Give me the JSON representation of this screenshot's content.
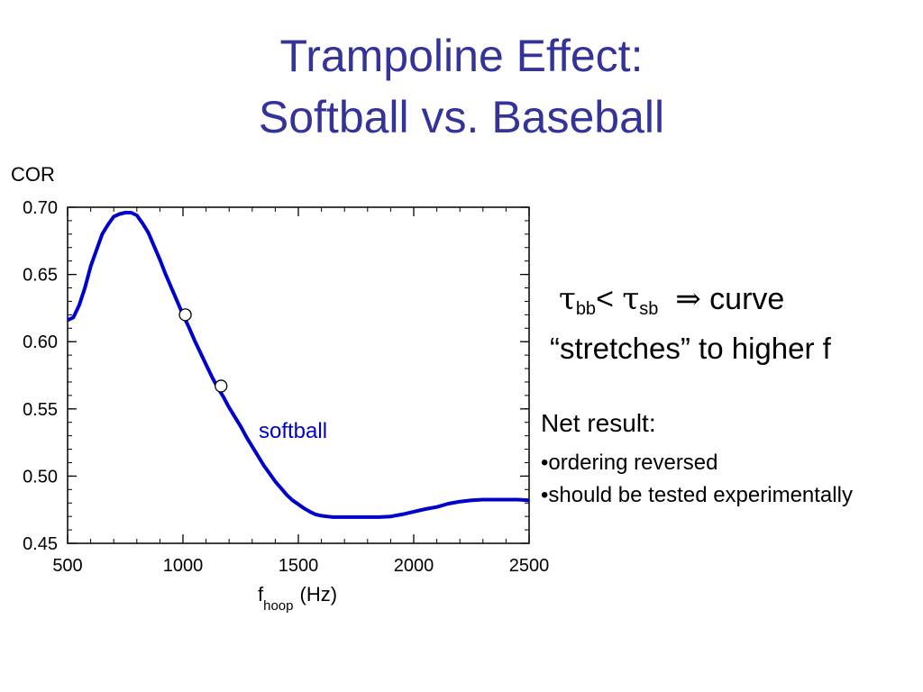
{
  "slide": {
    "title_line1": "Trampoline Effect:",
    "title_line2": "Softball vs. Baseball"
  },
  "right_text": {
    "tau": "τ",
    "sub_bb": "bb",
    "less_than": "<",
    "sub_sb": "sb",
    "implies": "⇒",
    "curve_word": "curve",
    "stretches_line": "“stretches” to higher f",
    "net_result": "Net result:",
    "bullet1": "•ordering reversed",
    "bullet2": "•should be tested experimentally"
  },
  "colors": {
    "title": "#333399",
    "curve": "#0000cc",
    "series_label": "#0000cc"
  },
  "chart_data": {
    "type": "line",
    "title": "",
    "ylabel": "COR",
    "xlabel_main": "f",
    "xlabel_sub": "hoop",
    "xlabel_unit": "(Hz)",
    "xlim": [
      500,
      2500
    ],
    "ylim": [
      0.45,
      0.7
    ],
    "xticks": [
      500,
      1000,
      1500,
      2000,
      2500
    ],
    "xtick_labels": [
      "500",
      "1000",
      "1500",
      "2000",
      "2500"
    ],
    "yticks": [
      0.45,
      0.5,
      0.55,
      0.6,
      0.65,
      0.7
    ],
    "ytick_labels": [
      "0.45",
      "0.50",
      "0.55",
      "0.60",
      "0.65",
      "0.70"
    ],
    "grid": false,
    "series": [
      {
        "name": "softball",
        "x": [
          500,
          525,
          550,
          575,
          600,
          625,
          650,
          675,
          700,
          725,
          750,
          775,
          800,
          825,
          850,
          875,
          900,
          925,
          950,
          975,
          1000,
          1025,
          1050,
          1075,
          1100,
          1125,
          1150,
          1175,
          1200,
          1225,
          1250,
          1275,
          1300,
          1325,
          1350,
          1375,
          1400,
          1425,
          1450,
          1475,
          1500,
          1525,
          1550,
          1575,
          1600,
          1625,
          1650,
          1675,
          1700,
          1725,
          1750,
          1800,
          1850,
          1900,
          1950,
          2000,
          2050,
          2100,
          2150,
          2200,
          2250,
          2300,
          2350,
          2400,
          2450,
          2500
        ],
        "y": [
          0.616,
          0.618,
          0.627,
          0.64,
          0.656,
          0.668,
          0.68,
          0.687,
          0.693,
          0.695,
          0.696,
          0.696,
          0.694,
          0.688,
          0.681,
          0.671,
          0.661,
          0.65,
          0.64,
          0.63,
          0.62,
          0.611,
          0.601,
          0.592,
          0.583,
          0.574,
          0.566,
          0.559,
          0.551,
          0.544,
          0.537,
          0.529,
          0.522,
          0.515,
          0.508,
          0.502,
          0.496,
          0.491,
          0.486,
          0.482,
          0.479,
          0.476,
          0.4735,
          0.4715,
          0.4705,
          0.47,
          0.4695,
          0.4695,
          0.4695,
          0.4695,
          0.4695,
          0.4695,
          0.4695,
          0.47,
          0.4715,
          0.4735,
          0.4755,
          0.477,
          0.4795,
          0.481,
          0.482,
          0.4825,
          0.4825,
          0.4825,
          0.4825,
          0.482
        ]
      }
    ],
    "markers": [
      {
        "x": 1010,
        "y": 0.62
      },
      {
        "x": 1165,
        "y": 0.567
      }
    ]
  }
}
